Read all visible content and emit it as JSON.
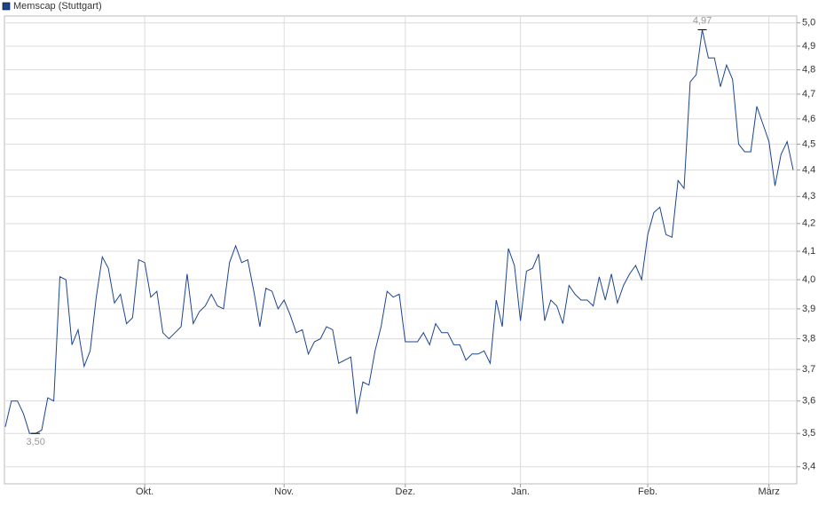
{
  "chart_data": {
    "type": "line",
    "log_scale": true,
    "grid": true,
    "legend": "top-left",
    "categories": [
      null,
      null,
      null,
      null,
      null,
      null,
      null,
      null,
      null,
      null,
      null,
      null,
      null,
      null,
      null,
      null,
      null,
      null,
      null,
      null,
      null,
      null,
      null,
      "Okt.",
      null,
      null,
      null,
      null,
      null,
      null,
      null,
      null,
      null,
      null,
      null,
      null,
      null,
      null,
      null,
      null,
      null,
      null,
      null,
      null,
      null,
      null,
      "Nov.",
      null,
      null,
      null,
      null,
      null,
      null,
      null,
      null,
      null,
      null,
      null,
      null,
      null,
      null,
      null,
      null,
      null,
      null,
      null,
      "Dez.",
      null,
      null,
      null,
      null,
      null,
      null,
      null,
      null,
      null,
      null,
      null,
      null,
      null,
      null,
      null,
      null,
      null,
      null,
      "Jan.",
      null,
      null,
      null,
      null,
      null,
      null,
      null,
      null,
      null,
      null,
      null,
      null,
      null,
      null,
      null,
      null,
      null,
      null,
      null,
      null,
      "Feb.",
      null,
      null,
      null,
      null,
      null,
      null,
      null,
      null,
      null,
      null,
      null,
      null,
      null,
      null,
      null,
      null,
      null,
      null,
      null,
      "März",
      null,
      null,
      null,
      null
    ],
    "series": [
      {
        "name": "Memscap (Stuttgart)",
        "color": "#1c4590",
        "values": [
          3.52,
          3.6,
          3.6,
          3.56,
          3.5,
          3.5,
          3.51,
          3.61,
          3.6,
          4.01,
          4.0,
          3.78,
          3.83,
          3.71,
          3.76,
          3.94,
          4.08,
          4.04,
          3.92,
          3.95,
          3.85,
          3.87,
          4.07,
          4.06,
          3.94,
          3.96,
          3.82,
          3.8,
          3.82,
          3.84,
          4.02,
          3.85,
          3.89,
          3.91,
          3.95,
          3.91,
          3.9,
          4.06,
          4.12,
          4.06,
          4.07,
          3.96,
          3.84,
          3.97,
          3.96,
          3.9,
          3.93,
          3.88,
          3.82,
          3.83,
          3.75,
          3.79,
          3.8,
          3.84,
          3.83,
          3.72,
          3.73,
          3.74,
          3.56,
          3.66,
          3.65,
          3.76,
          3.84,
          3.96,
          3.94,
          3.95,
          3.79,
          3.79,
          3.79,
          3.82,
          3.78,
          3.85,
          3.82,
          3.82,
          3.78,
          3.78,
          3.73,
          3.75,
          3.75,
          3.76,
          3.72,
          3.93,
          3.84,
          4.11,
          4.05,
          3.86,
          4.03,
          4.04,
          4.09,
          3.86,
          3.93,
          3.91,
          3.85,
          3.98,
          3.95,
          3.93,
          3.93,
          3.91,
          4.01,
          3.93,
          4.02,
          3.92,
          3.98,
          4.02,
          4.05,
          4.0,
          4.16,
          4.24,
          4.26,
          4.16,
          4.15,
          4.36,
          4.33,
          4.75,
          4.78,
          4.97,
          4.85,
          4.85,
          4.73,
          4.82,
          4.76,
          4.5,
          4.47,
          4.47,
          4.65,
          4.58,
          4.51,
          4.34,
          4.46,
          4.51,
          4.4
        ],
        "value_labels": [
          null,
          null,
          null,
          null,
          null,
          "3,50",
          null,
          null,
          null,
          null,
          null,
          null,
          null,
          null,
          null,
          null,
          null,
          null,
          null,
          null,
          null,
          null,
          null,
          null,
          null,
          null,
          null,
          null,
          null,
          null,
          null,
          null,
          null,
          null,
          null,
          null,
          null,
          null,
          null,
          null,
          null,
          null,
          null,
          null,
          null,
          null,
          null,
          null,
          null,
          null,
          null,
          null,
          null,
          null,
          null,
          null,
          null,
          null,
          null,
          null,
          null,
          null,
          null,
          null,
          null,
          null,
          null,
          null,
          null,
          null,
          null,
          null,
          null,
          null,
          null,
          null,
          null,
          null,
          null,
          null,
          null,
          null,
          null,
          null,
          null,
          null,
          null,
          null,
          null,
          null,
          null,
          null,
          null,
          null,
          null,
          null,
          null,
          null,
          null,
          null,
          null,
          null,
          null,
          null,
          null,
          null,
          null,
          null,
          null,
          null,
          null,
          null,
          null,
          null,
          null,
          "4,97",
          null,
          null,
          null,
          null,
          null,
          null,
          null,
          null,
          null,
          null,
          null,
          null,
          null,
          null,
          null
        ]
      }
    ],
    "ylim": [
      3.35,
      5.03
    ],
    "yticks": [
      {
        "value": 3.4,
        "label": "3,4"
      },
      {
        "value": 3.5,
        "label": "3,5"
      },
      {
        "value": 3.6,
        "label": "3,6"
      },
      {
        "value": 3.7,
        "label": "3,7"
      },
      {
        "value": 3.8,
        "label": "3,8"
      },
      {
        "value": 3.9,
        "label": "3,9"
      },
      {
        "value": 4.0,
        "label": "4,0"
      },
      {
        "value": 4.1,
        "label": "4,1"
      },
      {
        "value": 4.2,
        "label": "4,2"
      },
      {
        "value": 4.3,
        "label": "4,3"
      },
      {
        "value": 4.4,
        "label": "4,4"
      },
      {
        "value": 4.5,
        "label": "4,5"
      },
      {
        "value": 4.6,
        "label": "4,6"
      },
      {
        "value": 4.7,
        "label": "4,7"
      },
      {
        "value": 4.8,
        "label": "4,8"
      },
      {
        "value": 4.9,
        "label": "4,9"
      },
      {
        "value": 5.0,
        "label": "5,0"
      }
    ]
  }
}
